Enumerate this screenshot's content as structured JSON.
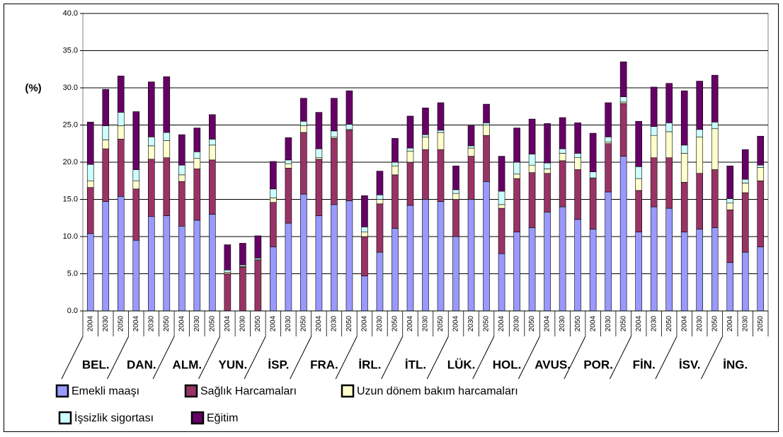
{
  "chart_data": {
    "type": "stacked_bar",
    "y_label": "(%)",
    "categories": [
      "2004",
      "2030",
      "2050",
      "2004",
      "2030",
      "2050",
      "2004",
      "2030",
      "2050",
      "2004",
      "2030",
      "2050",
      "2004",
      "2030",
      "2050",
      "2004",
      "2030",
      "2050",
      "2004",
      "2030",
      "2050",
      "2004",
      "2030",
      "2050",
      "2004",
      "2030",
      "2050",
      "2004",
      "2030",
      "2050",
      "2004",
      "2030",
      "2050",
      "2004",
      "2030",
      "2050",
      "2004",
      "2030",
      "2050",
      "2004",
      "2030",
      "2050",
      "2004",
      "2030",
      "2050"
    ],
    "groups": [
      "BEL.",
      "DAN.",
      "ALM.",
      "YUN.",
      "İSP.",
      "FRA.",
      "İRL.",
      "İTL.",
      "LÜK.",
      "HOL.",
      "AVUS.",
      "POR.",
      "FİN.",
      "İSV.",
      "İNG."
    ],
    "series": [
      {
        "name": "Emekli maaşı",
        "color": "#9999ff",
        "values": [
          10.4,
          14.7,
          15.4,
          9.5,
          12.7,
          12.8,
          11.4,
          12.2,
          13.0,
          0,
          0,
          0,
          8.6,
          11.8,
          15.7,
          12.8,
          14.3,
          14.8,
          4.7,
          7.9,
          11.1,
          14.2,
          15.0,
          14.7,
          10.0,
          15.0,
          17.4,
          7.7,
          10.6,
          11.2,
          13.3,
          14.0,
          12.3,
          11.0,
          16.0,
          20.8,
          10.6,
          14.0,
          13.8,
          10.6,
          11.0,
          11.2,
          6.5,
          7.9,
          8.6
        ]
      },
      {
        "name": "Sağlık Harcamaları",
        "color": "#993366",
        "values": [
          6.2,
          7.1,
          7.7,
          6.9,
          7.7,
          7.8,
          6.0,
          6.9,
          7.3,
          5.0,
          5.9,
          6.8,
          6.0,
          7.4,
          8.3,
          7.6,
          8.9,
          9.5,
          5.3,
          6.5,
          7.2,
          5.8,
          6.7,
          7.0,
          5.0,
          5.8,
          6.2,
          6.1,
          7.2,
          7.4,
          5.2,
          6.2,
          6.7,
          6.8,
          6.5,
          7.1,
          5.6,
          6.6,
          6.8,
          6.7,
          7.5,
          7.8,
          7.1,
          8.0,
          8.9
        ]
      },
      {
        "name": "Uzun dönem bakım harcamaları",
        "color": "#ffffcc",
        "values": [
          0.9,
          1.2,
          1.8,
          1.1,
          1.8,
          2.3,
          0.9,
          1.4,
          2.0,
          0.2,
          0.1,
          0.1,
          0.6,
          0.6,
          0.9,
          0.2,
          0.2,
          0.1,
          0.6,
          0.6,
          1.2,
          1.5,
          1.7,
          2.3,
          0.8,
          1.1,
          1.4,
          0.5,
          0.6,
          1.0,
          0.6,
          1.0,
          1.6,
          0.1,
          0.2,
          0.2,
          1.6,
          3.0,
          3.5,
          3.9,
          4.9,
          5.5,
          0.9,
          1.3,
          1.8
        ]
      },
      {
        "name": "İşsizlik sigortası",
        "color": "#ccffff",
        "values": [
          2.2,
          1.9,
          1.8,
          1.5,
          1.2,
          1.1,
          1.3,
          0.9,
          0.8,
          0.3,
          0.2,
          0.2,
          1.2,
          0.5,
          0.6,
          1.2,
          0.8,
          0.7,
          0.7,
          0.6,
          0.5,
          0.4,
          0.3,
          0.3,
          0.5,
          0.3,
          0.3,
          1.8,
          1.6,
          1.5,
          0.8,
          0.6,
          0.6,
          0.8,
          0.7,
          0.7,
          1.6,
          1.2,
          1.2,
          1.1,
          1.0,
          0.9,
          0.6,
          0.5,
          0.3
        ]
      },
      {
        "name": "Eğitim",
        "color": "#660066",
        "values": [
          5.7,
          4.9,
          4.9,
          7.8,
          7.4,
          7.5,
          4.1,
          3.2,
          3.3,
          3.4,
          2.9,
          3.0,
          3.7,
          3.0,
          3.1,
          4.9,
          4.4,
          4.5,
          4.2,
          3.2,
          3.2,
          4.3,
          3.6,
          3.7,
          3.2,
          2.7,
          2.5,
          4.7,
          4.6,
          4.7,
          5.3,
          4.2,
          4.1,
          5.2,
          4.6,
          4.7,
          6.1,
          5.3,
          5.3,
          7.3,
          6.5,
          6.3,
          4.4,
          4.0,
          3.9
        ]
      }
    ],
    "ylim": [
      0,
      40
    ],
    "yticks": [
      {
        "value": 0,
        "label": "0.0"
      },
      {
        "value": 5,
        "label": "5.0"
      },
      {
        "value": 10,
        "label": "10.0"
      },
      {
        "value": 15,
        "label": "15.0"
      },
      {
        "value": 20,
        "label": "20.0"
      },
      {
        "value": 25,
        "label": "25.0"
      },
      {
        "value": 30,
        "label": "30.0"
      },
      {
        "value": 35,
        "label": "35.0"
      },
      {
        "value": 40,
        "label": "40.0"
      }
    ],
    "grid": true
  }
}
